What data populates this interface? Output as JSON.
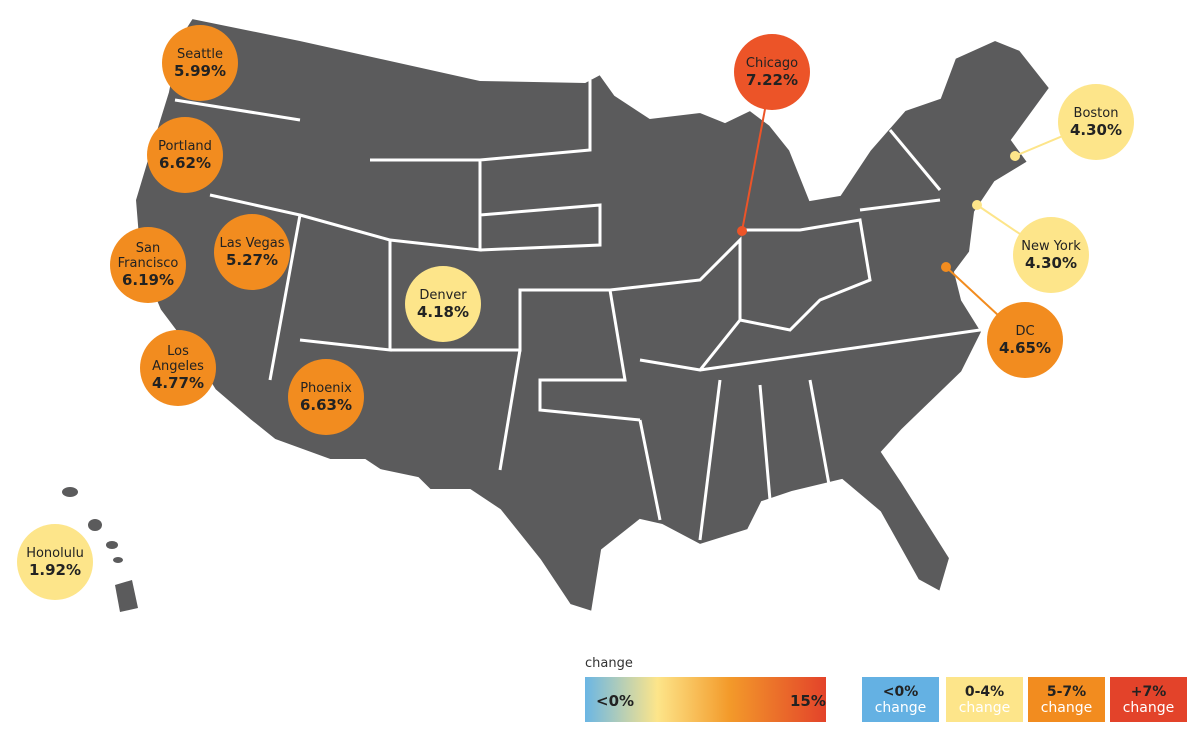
{
  "cities": [
    {
      "name": "Seattle",
      "value": "5.99%"
    },
    {
      "name": "Portland",
      "value": "6.62%"
    },
    {
      "name": "San Francisco",
      "value": "6.19%"
    },
    {
      "name": "Las Vegas",
      "value": "5.27%"
    },
    {
      "name": "Los Angeles",
      "value": "4.77%"
    },
    {
      "name": "Phoenix",
      "value": "6.63%"
    },
    {
      "name": "Denver",
      "value": "4.18%"
    },
    {
      "name": "Chicago",
      "value": "7.22%"
    },
    {
      "name": "Boston",
      "value": "4.30%"
    },
    {
      "name": "New York",
      "value": "4.30%"
    },
    {
      "name": "DC",
      "value": "4.65%"
    },
    {
      "name": "Honolulu",
      "value": "1.92%"
    }
  ],
  "legend": {
    "title": "change",
    "scale_min": "<0%",
    "scale_max": "15%",
    "bins": [
      {
        "label": "<0%",
        "sub": "change"
      },
      {
        "label": "0-4%",
        "sub": "change"
      },
      {
        "label": "5-7%",
        "sub": "change"
      },
      {
        "label": "+7%",
        "sub": "change"
      }
    ]
  }
}
